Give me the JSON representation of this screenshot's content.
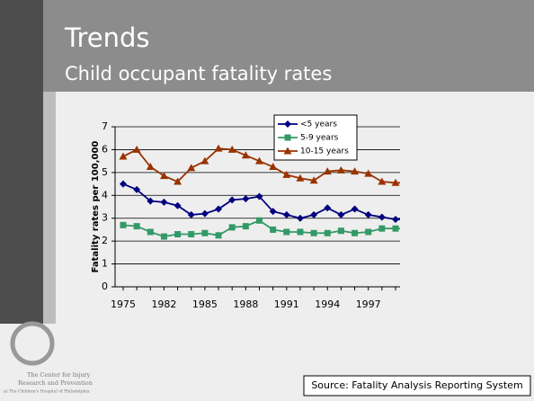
{
  "header": {
    "title": "Trends",
    "subtitle": "Child occupant fatality rates"
  },
  "chart_data": {
    "type": "line",
    "ylabel": "Fatality rates per 100,000",
    "categories": [
      "1975",
      null,
      null,
      "1982",
      null,
      null,
      "1985",
      null,
      null,
      "1988",
      null,
      null,
      "1991",
      null,
      null,
      "1994",
      null,
      null,
      "1997",
      null,
      null
    ],
    "series": [
      {
        "name": "<5 years",
        "color": "#000080",
        "marker": "diamond",
        "values": [
          4.5,
          4.25,
          3.75,
          3.7,
          3.55,
          3.15,
          3.2,
          3.4,
          3.8,
          3.85,
          3.95,
          3.3,
          3.15,
          3.0,
          3.15,
          3.45,
          3.15,
          3.4,
          3.15,
          3.05,
          2.95
        ]
      },
      {
        "name": "5-9 years",
        "color": "#339966",
        "marker": "square",
        "values": [
          2.7,
          2.65,
          2.4,
          2.2,
          2.3,
          2.3,
          2.35,
          2.25,
          2.6,
          2.65,
          2.9,
          2.5,
          2.4,
          2.4,
          2.35,
          2.35,
          2.45,
          2.35,
          2.4,
          2.55,
          2.55
        ]
      },
      {
        "name": "10-15 years",
        "color": "#993300",
        "marker": "triangle",
        "values": [
          5.7,
          6.0,
          5.25,
          4.85,
          4.6,
          5.2,
          5.5,
          6.05,
          6.0,
          5.75,
          5.5,
          5.25,
          4.9,
          4.75,
          4.65,
          5.05,
          5.1,
          5.05,
          4.95,
          4.6,
          4.55
        ]
      }
    ],
    "ylim": [
      0,
      7
    ],
    "yticks": [
      0,
      1,
      2,
      3,
      4,
      5,
      6,
      7
    ],
    "grid": true,
    "legend": "top"
  },
  "source": "Source: Fatality Analysis Reporting System",
  "logo": {
    "line1": "The Center for Injury",
    "line2": "Research and Prevention",
    "line3": "at The Children's Hospital of Philadelphia"
  }
}
